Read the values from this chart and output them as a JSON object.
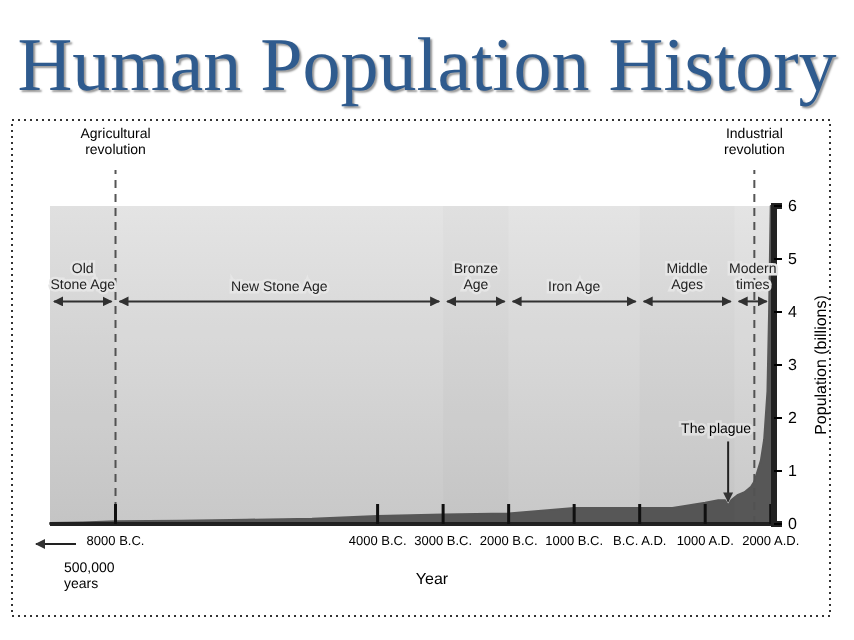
{
  "chart_data": {
    "type": "area",
    "title": "Human Population History",
    "xlabel": "Year",
    "ylabel": "Population (billions)",
    "x": [
      -9000,
      -8500,
      -8000,
      -7000,
      -6000,
      -5000,
      -4000,
      -3000,
      -2000,
      -1500,
      -1000,
      -500,
      0,
      500,
      1000,
      1200,
      1300,
      1350,
      1400,
      1500,
      1600,
      1700,
      1750,
      1800,
      1850,
      1900,
      1950,
      1975,
      2000
    ],
    "series": [
      {
        "color": "#5a5a5a",
        "values": [
          0.02,
          0.03,
          0.05,
          0.06,
          0.08,
          0.1,
          0.15,
          0.18,
          0.2,
          0.25,
          0.3,
          0.3,
          0.3,
          0.3,
          0.4,
          0.45,
          0.45,
          0.35,
          0.45,
          0.55,
          0.6,
          0.7,
          0.8,
          1.0,
          1.2,
          1.6,
          2.5,
          4,
          6
        ]
      }
    ],
    "xlim": [
      -9000,
      2050
    ],
    "ylim": [
      0,
      6
    ],
    "xticks": [
      {
        "value": -8000,
        "label": "8000 B.C."
      },
      {
        "value": -4000,
        "label": "4000 B.C."
      },
      {
        "value": -3000,
        "label": "3000 B.C."
      },
      {
        "value": -2000,
        "label": "2000 B.C."
      },
      {
        "value": -1000,
        "label": "1000 B.C."
      },
      {
        "value": 0,
        "label": "B.C. A.D."
      },
      {
        "value": 1000,
        "label": "1000 A.D."
      },
      {
        "value": 2000,
        "label": "2000 A.D."
      }
    ],
    "yticks": [
      0,
      1,
      2,
      3,
      4,
      5,
      6
    ],
    "ref_lines": [
      {
        "axis": "x",
        "value": -8000,
        "label": "Agricultural revolution",
        "line_style": "dashed"
      },
      {
        "axis": "x",
        "value": 1750,
        "label": "Industrial revolution",
        "line_style": "dashed"
      }
    ],
    "bands": [
      {
        "axis": "x",
        "from": -9000,
        "to": -8000,
        "label": "Old Stone Age"
      },
      {
        "axis": "x",
        "from": -8000,
        "to": -3000,
        "label": "New Stone Age"
      },
      {
        "axis": "x",
        "from": -3000,
        "to": -2000,
        "label": "Bronze Age"
      },
      {
        "axis": "x",
        "from": -2000,
        "to": 0,
        "label": "Iron Age"
      },
      {
        "axis": "x",
        "from": 0,
        "to": 1450,
        "label": "Middle Ages"
      },
      {
        "axis": "x",
        "from": 1450,
        "to": 2000,
        "label": "Modern times"
      }
    ],
    "annotations": [
      {
        "text": "The plague",
        "x": 1350,
        "y": 0.35
      },
      "500,000 years"
    ],
    "grid": false
  }
}
